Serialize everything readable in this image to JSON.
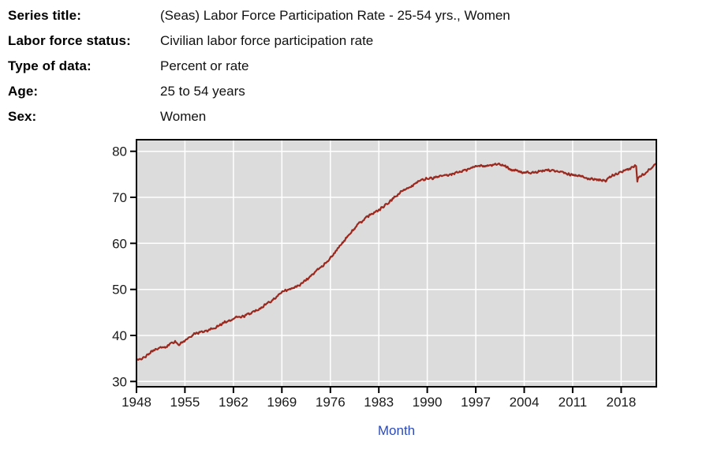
{
  "metadata": {
    "rows": [
      {
        "label": "Series title:",
        "value": "(Seas) Labor Force Participation Rate - 25-54 yrs., Women"
      },
      {
        "label": "Labor force status:",
        "value": "Civilian labor force participation rate"
      },
      {
        "label": "Type of data:",
        "value": "Percent or rate"
      },
      {
        "label": "Age:",
        "value": "25 to 54 years"
      },
      {
        "label": "Sex:",
        "value": "Women"
      }
    ]
  },
  "chart_data": {
    "type": "line",
    "title": "",
    "xlabel": "Month",
    "ylabel": "",
    "x_ticks": [
      1948,
      1955,
      1962,
      1969,
      1976,
      1983,
      1990,
      1997,
      2004,
      2011,
      2018
    ],
    "y_ticks": [
      30,
      40,
      50,
      60,
      70,
      80
    ],
    "xlim": [
      1948,
      2023.083
    ],
    "ylim": [
      28.85,
      82.52
    ],
    "grid": true,
    "legend": "none",
    "sampling": "monthly",
    "colors": {
      "line": "#9a2a20",
      "plot_background": "#dcdcdc",
      "gridline": "#ffffff",
      "frame": "#000000",
      "tick_label": "#1a1a1a",
      "xlabel": "#2d4bb5"
    },
    "series": [
      {
        "name": "(Seas) Labor Force Participation Rate - 25-54 yrs., Women",
        "unit": "percent",
        "anchor_points": [
          [
            1948.0,
            34.9
          ],
          [
            1948.25,
            34.5
          ],
          [
            1948.6,
            35.0
          ],
          [
            1949.0,
            35.1
          ],
          [
            1949.5,
            35.6
          ],
          [
            1950.0,
            36.2
          ],
          [
            1950.5,
            36.9
          ],
          [
            1951.0,
            37.1
          ],
          [
            1951.5,
            37.3
          ],
          [
            1952.0,
            37.4
          ],
          [
            1952.5,
            37.8
          ],
          [
            1953.0,
            38.3
          ],
          [
            1953.5,
            38.6
          ],
          [
            1954.2,
            38.1
          ],
          [
            1955.0,
            38.9
          ],
          [
            1955.5,
            39.4
          ],
          [
            1956.0,
            40.0
          ],
          [
            1956.5,
            40.4
          ],
          [
            1957.0,
            40.6
          ],
          [
            1958.0,
            41.0
          ],
          [
            1959.0,
            41.4
          ],
          [
            1960.0,
            42.2
          ],
          [
            1961.0,
            43.1
          ],
          [
            1962.0,
            43.6
          ],
          [
            1962.4,
            44.1
          ],
          [
            1963.0,
            43.9
          ],
          [
            1964.0,
            44.5
          ],
          [
            1965.0,
            45.2
          ],
          [
            1966.0,
            46.1
          ],
          [
            1967.0,
            47.1
          ],
          [
            1968.0,
            48.1
          ],
          [
            1969.0,
            49.4
          ],
          [
            1970.0,
            50.1
          ],
          [
            1970.7,
            50.4
          ],
          [
            1971.4,
            50.7
          ],
          [
            1972.0,
            51.4
          ],
          [
            1973.0,
            52.7
          ],
          [
            1974.0,
            54.0
          ],
          [
            1975.0,
            55.3
          ],
          [
            1976.0,
            56.8
          ],
          [
            1977.0,
            58.7
          ],
          [
            1978.0,
            60.6
          ],
          [
            1979.0,
            62.4
          ],
          [
            1980.0,
            64.1
          ],
          [
            1981.0,
            65.4
          ],
          [
            1982.0,
            66.4
          ],
          [
            1983.0,
            67.2
          ],
          [
            1984.0,
            68.3
          ],
          [
            1985.0,
            69.6
          ],
          [
            1986.0,
            70.9
          ],
          [
            1987.0,
            72.0
          ],
          [
            1988.0,
            72.7
          ],
          [
            1989.0,
            73.6
          ],
          [
            1990.0,
            74.1
          ],
          [
            1991.0,
            74.2
          ],
          [
            1992.0,
            74.6
          ],
          [
            1993.0,
            74.7
          ],
          [
            1994.0,
            75.3
          ],
          [
            1995.0,
            75.7
          ],
          [
            1996.0,
            76.1
          ],
          [
            1997.0,
            76.8
          ],
          [
            1997.5,
            77.0
          ],
          [
            1998.0,
            76.7
          ],
          [
            1999.0,
            76.9
          ],
          [
            2000.2,
            77.3
          ],
          [
            2001.0,
            76.9
          ],
          [
            2002.0,
            76.2
          ],
          [
            2003.0,
            75.7
          ],
          [
            2004.0,
            75.4
          ],
          [
            2005.0,
            75.3
          ],
          [
            2006.0,
            75.5
          ],
          [
            2007.0,
            75.9
          ],
          [
            2008.0,
            75.9
          ],
          [
            2009.0,
            75.7
          ],
          [
            2010.0,
            75.3
          ],
          [
            2011.0,
            74.8
          ],
          [
            2012.0,
            74.6
          ],
          [
            2013.0,
            74.1
          ],
          [
            2014.0,
            74.0
          ],
          [
            2015.0,
            73.8
          ],
          [
            2015.7,
            73.5
          ],
          [
            2016.3,
            74.2
          ],
          [
            2017.0,
            74.9
          ],
          [
            2018.0,
            75.4
          ],
          [
            2019.0,
            76.0
          ],
          [
            2019.7,
            76.6
          ],
          [
            2020.08,
            76.9
          ],
          [
            2020.17,
            76.8
          ],
          [
            2020.33,
            73.6
          ],
          [
            2020.42,
            74.3
          ],
          [
            2020.6,
            74.6
          ],
          [
            2021.0,
            74.9
          ],
          [
            2021.5,
            75.3
          ],
          [
            2022.0,
            76.0
          ],
          [
            2022.5,
            76.7
          ],
          [
            2022.9,
            77.2
          ],
          [
            2023.09,
            77.6
          ]
        ]
      }
    ]
  }
}
